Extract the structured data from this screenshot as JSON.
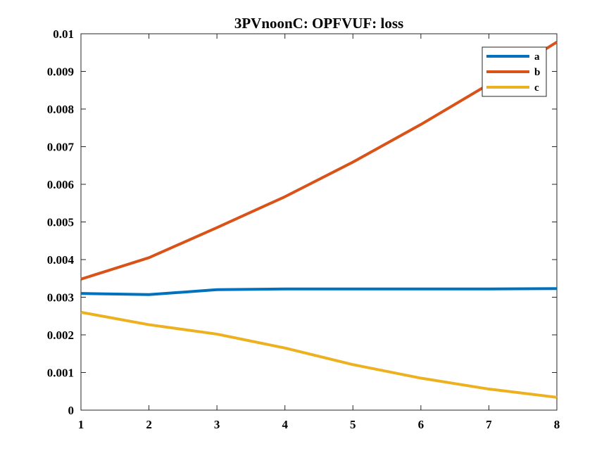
{
  "chart_data": {
    "type": "line",
    "title": "3PVnoonC: OPFVUF: loss",
    "xlabel": "",
    "ylabel": "",
    "x": [
      1,
      2,
      3,
      4,
      5,
      6,
      7,
      8
    ],
    "xlim": [
      1,
      8
    ],
    "ylim": [
      0,
      0.01
    ],
    "x_ticks": [
      "1",
      "2",
      "3",
      "4",
      "5",
      "6",
      "7",
      "8"
    ],
    "y_ticks": [
      "0",
      "0.001",
      "0.002",
      "0.003",
      "0.004",
      "0.005",
      "0.006",
      "0.007",
      "0.008",
      "0.009",
      "0.01"
    ],
    "grid": false,
    "legend_position": "top-right",
    "series": [
      {
        "name": "a",
        "color": "#0072BD",
        "values": [
          0.0031,
          0.00307,
          0.0032,
          0.00322,
          0.00322,
          0.00322,
          0.00322,
          0.00323
        ]
      },
      {
        "name": "b",
        "color": "#D95319",
        "values": [
          0.00348,
          0.00405,
          0.00485,
          0.00567,
          0.00659,
          0.00759,
          0.00866,
          0.00978
        ]
      },
      {
        "name": "c",
        "color": "#EDB120",
        "values": [
          0.0026,
          0.00227,
          0.00202,
          0.00165,
          0.00121,
          0.00085,
          0.00056,
          0.00034
        ]
      }
    ]
  }
}
